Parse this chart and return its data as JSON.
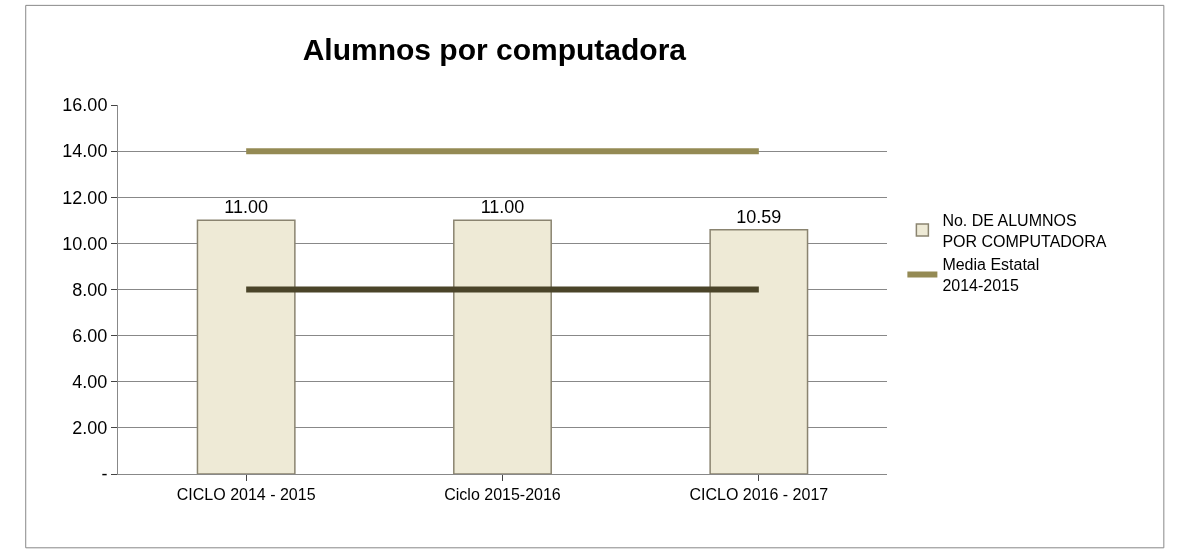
{
  "chart_data": {
    "type": "bar",
    "title": "Alumnos por computadora",
    "categories": [
      "CICLO 2014 - 2015",
      "Ciclo 2015-2016",
      "CICLO 2016 - 2017"
    ],
    "series": [
      {
        "name": "No. DE ALUMNOS POR COMPUTADORA",
        "color": "#eeead6",
        "values": [
          11,
          11,
          10.59
        ],
        "value_labels": [
          "11.00",
          "11.00",
          "10.59"
        ]
      },
      {
        "name": "Media Estatal 2014-2015",
        "type": "line",
        "color": "#948a54",
        "values": [
          14,
          14,
          14
        ]
      },
      {
        "type": "line",
        "color": "#4a4429",
        "values": [
          8,
          8,
          8
        ]
      }
    ],
    "ylim": [
      0,
      16
    ],
    "yticks": [
      {
        "value": 0,
        "label": "-"
      },
      {
        "value": 2,
        "label": "2.00"
      },
      {
        "value": 4,
        "label": "4.00"
      },
      {
        "value": 6,
        "label": "6.00"
      },
      {
        "value": 8,
        "label": "8.00"
      },
      {
        "value": 10,
        "label": "10.00"
      },
      {
        "value": 12,
        "label": "12.00"
      },
      {
        "value": 14,
        "label": "14.00"
      },
      {
        "value": 16,
        "label": "16.00"
      }
    ],
    "grid": "y",
    "legend": "right",
    "marker": "none",
    "line_style": "solid"
  }
}
